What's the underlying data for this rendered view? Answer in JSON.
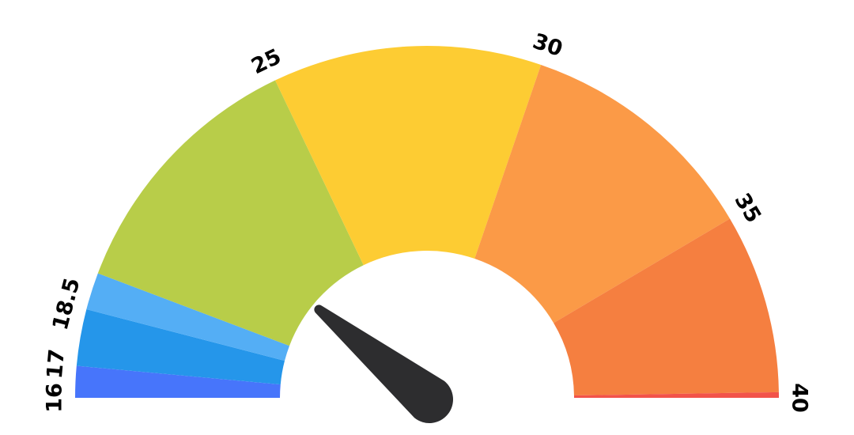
{
  "chart_data": {
    "type": "gauge",
    "min": 16,
    "max": 40,
    "segments": [
      {
        "from": 16,
        "to": 17,
        "color": "#4775fb"
      },
      {
        "from": 17,
        "to": 18.5,
        "color": "#2596ea"
      },
      {
        "from": 18.5,
        "to": 25,
        "color": "#54aef5"
      },
      {
        "from": 25,
        "to": 30,
        "color": "#b8cd49"
      },
      {
        "from": 30,
        "to": 35,
        "color": "#fdcc33"
      },
      {
        "from": 35,
        "to": 40,
        "color": "#fb9a47"
      },
      {
        "from": 40,
        "to": 40,
        "color": "#f57f40"
      }
    ],
    "tick_labels": [
      "16",
      "17",
      "18.5",
      "25",
      "30",
      "35",
      "40"
    ],
    "needle_value": 21.7,
    "needle_color": "#2d2d2f"
  }
}
